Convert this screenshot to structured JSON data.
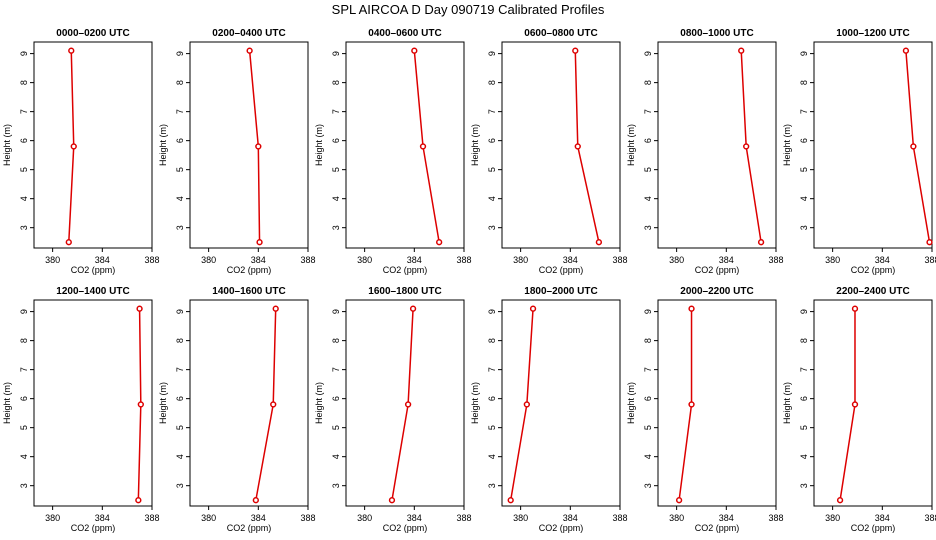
{
  "title": "SPL AIRCOA D  Day 090719  Calibrated Profiles",
  "chart_data": {
    "type": "line",
    "xlabel": "CO2 (ppm)",
    "ylabel": "Height (m)",
    "xlim": [
      378.5,
      388
    ],
    "ylim": [
      2.3,
      9.4
    ],
    "xticks": [
      380,
      384,
      388
    ],
    "yticks": [
      3,
      4,
      5,
      6,
      7,
      8,
      9
    ],
    "line_color": "#dd0000",
    "panels": [
      {
        "title": "0000–0200 UTC",
        "heights": [
          9.1,
          5.8,
          2.5
        ],
        "co2": [
          381.5,
          381.7,
          381.3
        ]
      },
      {
        "title": "0200–0400 UTC",
        "heights": [
          9.1,
          5.8,
          2.5
        ],
        "co2": [
          383.3,
          384.0,
          384.1
        ]
      },
      {
        "title": "0400–0600 UTC",
        "heights": [
          9.1,
          5.8,
          2.5
        ],
        "co2": [
          384.0,
          384.7,
          386.0
        ]
      },
      {
        "title": "0600–0800 UTC",
        "heights": [
          9.1,
          5.8,
          2.5
        ],
        "co2": [
          384.4,
          384.6,
          386.3
        ]
      },
      {
        "title": "0800–1000 UTC",
        "heights": [
          9.1,
          5.8,
          2.5
        ],
        "co2": [
          385.2,
          385.6,
          386.8
        ]
      },
      {
        "title": "1000–1200 UTC",
        "heights": [
          9.1,
          5.8,
          2.5
        ],
        "co2": [
          385.9,
          386.5,
          387.8
        ]
      },
      {
        "title": "1200–1400 UTC",
        "heights": [
          9.1,
          5.8,
          2.5
        ],
        "co2": [
          387.0,
          387.1,
          386.9
        ]
      },
      {
        "title": "1400–1600 UTC",
        "heights": [
          9.1,
          5.8,
          2.5
        ],
        "co2": [
          385.4,
          385.2,
          383.8
        ]
      },
      {
        "title": "1600–1800 UTC",
        "heights": [
          9.1,
          5.8,
          2.5
        ],
        "co2": [
          383.9,
          383.5,
          382.2
        ]
      },
      {
        "title": "1800–2000 UTC",
        "heights": [
          9.1,
          5.8,
          2.5
        ],
        "co2": [
          381.0,
          380.5,
          379.2
        ]
      },
      {
        "title": "2000–2200 UTC",
        "heights": [
          9.1,
          5.8,
          2.5
        ],
        "co2": [
          381.2,
          381.2,
          380.2
        ]
      },
      {
        "title": "2200–2400 UTC",
        "heights": [
          9.1,
          5.8,
          2.5
        ],
        "co2": [
          381.8,
          381.8,
          380.6
        ]
      }
    ]
  }
}
